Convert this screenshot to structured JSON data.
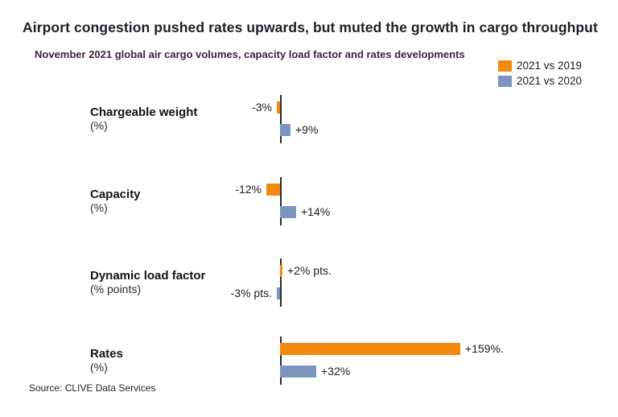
{
  "header": {
    "title": "Airport congestion pushed rates upwards, but muted the growth in cargo throughput",
    "subtitle": "November 2021 global air cargo volumes, capacity load factor and rates developments"
  },
  "legend": {
    "items": [
      {
        "label": "2021 vs 2019",
        "color": "#F28A0D"
      },
      {
        "label": "2021 vs 2020",
        "color": "#7C95BE"
      }
    ]
  },
  "chart_data": {
    "type": "bar",
    "orientation": "horizontal",
    "grid": false,
    "legend_position": "top-right",
    "axis_color": "#2b2b2b",
    "series": [
      {
        "name": "2021 vs 2019",
        "color": "#F28A0D"
      },
      {
        "name": "2021 vs 2020",
        "color": "#7C95BE"
      }
    ],
    "categories": [
      {
        "label": "Chargeable weight",
        "unit_label": "(%)",
        "values": [
          -3,
          9
        ],
        "value_labels": [
          "-3%",
          "+9%"
        ]
      },
      {
        "label": "Capacity",
        "unit_label": "(%)",
        "values": [
          -12,
          14
        ],
        "value_labels": [
          "-12%",
          "+14%"
        ]
      },
      {
        "label": "Dynamic load factor",
        "unit_label": "(% points)",
        "values": [
          2,
          -3
        ],
        "value_labels": [
          "+2% pts.",
          "-3% pts."
        ]
      },
      {
        "label": "Rates",
        "unit_label": "(%)",
        "values": [
          159,
          32
        ],
        "value_labels": [
          "+159%.",
          "+32%"
        ]
      }
    ]
  },
  "footer": {
    "source": "Source: CLIVE Data Services"
  }
}
